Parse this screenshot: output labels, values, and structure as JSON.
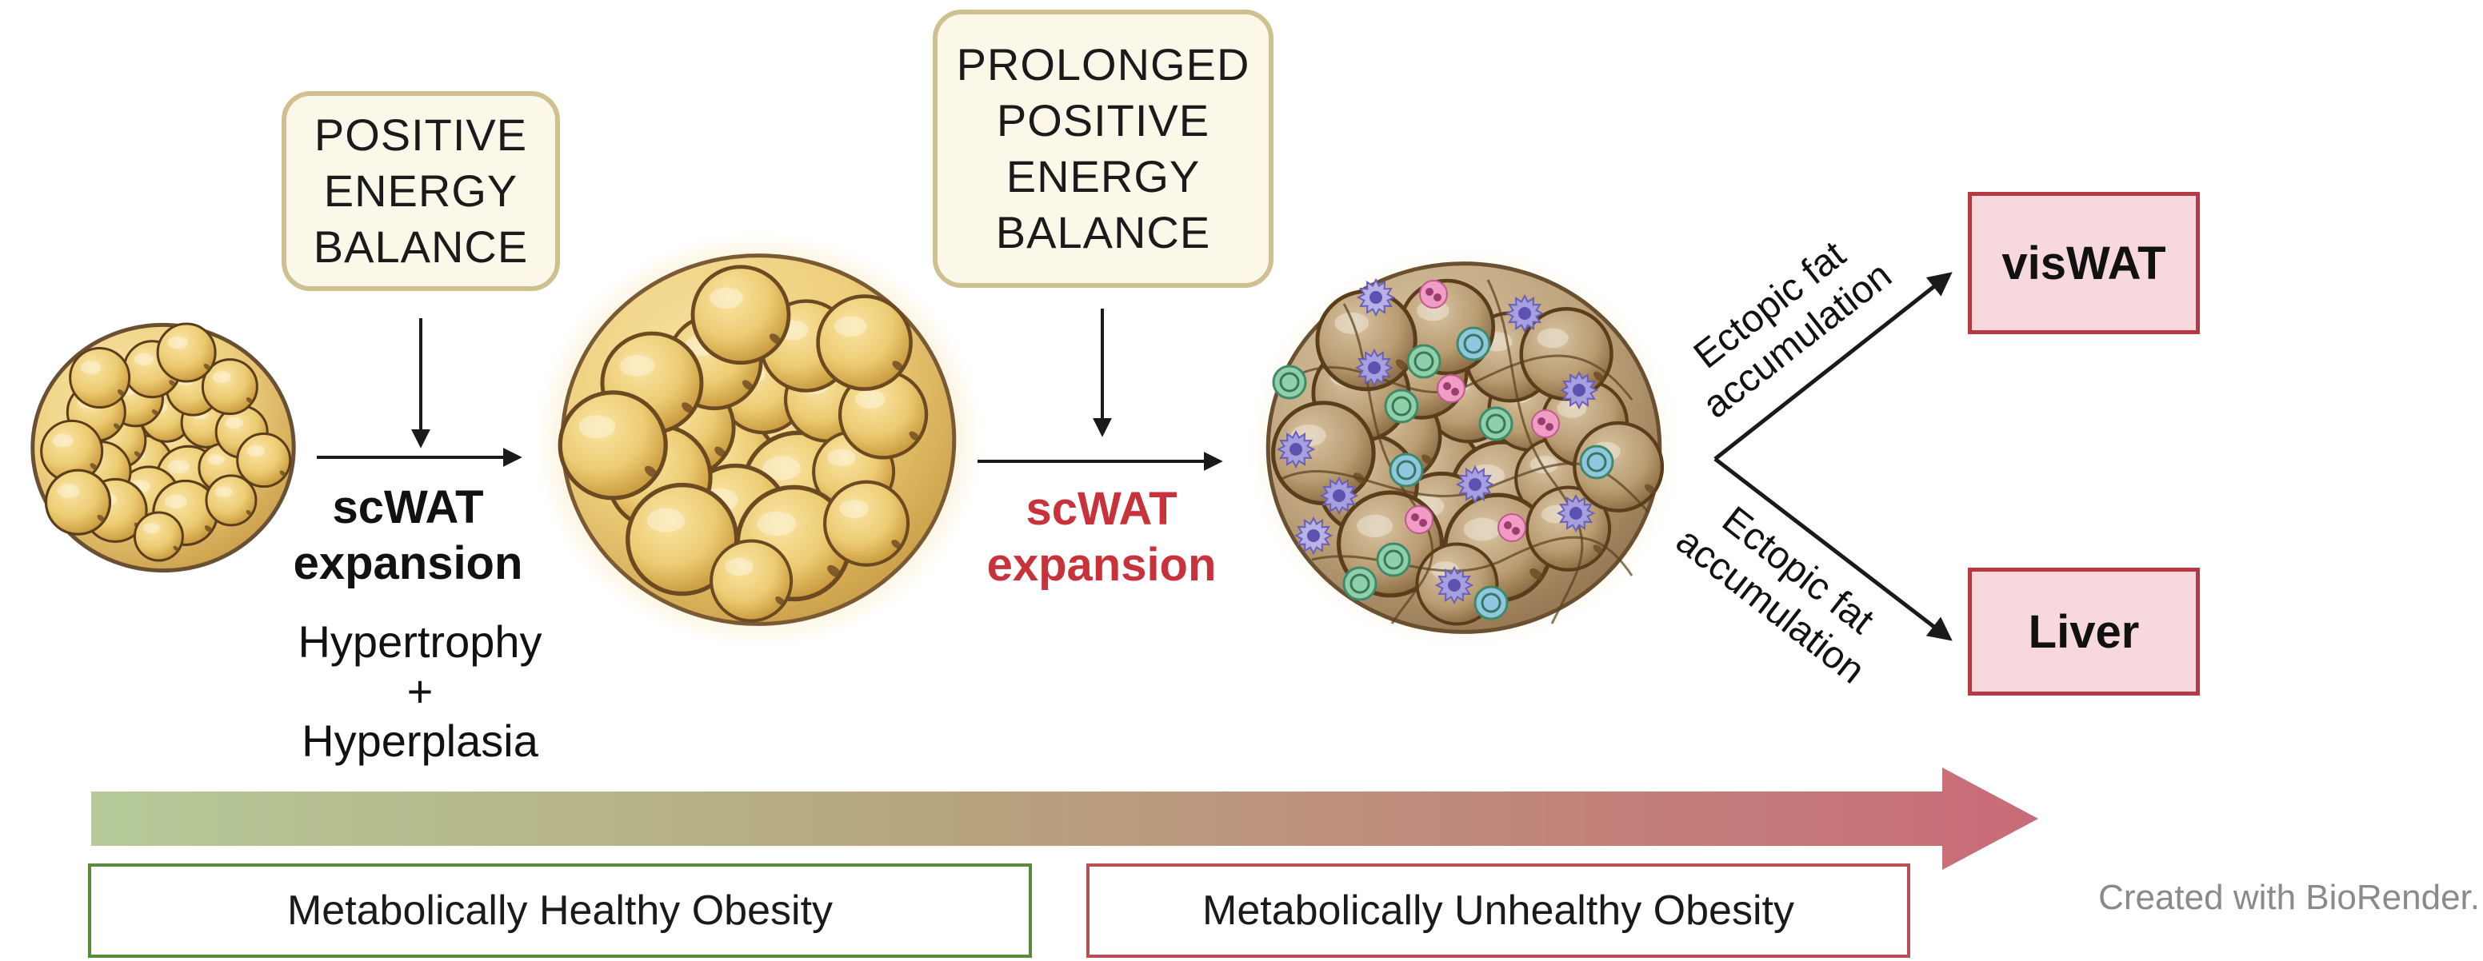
{
  "stimulus_1": [
    "POSITIVE",
    "ENERGY",
    "BALANCE"
  ],
  "stimulus_2": [
    "PROLONGED",
    "POSITIVE",
    "ENERGY",
    "BALANCE"
  ],
  "step_1": {
    "label_lines": [
      "scWAT",
      "expansion"
    ],
    "mechanism_lines": [
      "Hypertrophy",
      "+",
      "Hyperplasia"
    ]
  },
  "step_2": {
    "label_lines": [
      "scWAT",
      "expansion"
    ]
  },
  "branches": {
    "upper_label_lines": [
      "Ectopic fat",
      "accumulation"
    ],
    "lower_label_lines": [
      "Ectopic fat",
      "accumulation"
    ]
  },
  "targets": {
    "upper": "visWAT",
    "lower": "Liver"
  },
  "phases": {
    "healthy": "Metabolically Healthy Obesity",
    "unhealthy": "Metabolically Unhealthy Obesity"
  },
  "credit": "Created with BioRender.",
  "colors": {
    "text": "#111111",
    "accent_red": "#c8323a",
    "healthy_green": "#5a8a3c",
    "unhealthy_red": "#b8505a",
    "gradient_start": "#b5ca98",
    "gradient_end": "#c96a78",
    "stimulus_fill": "#fbf8ea",
    "stimulus_border": "#cfc08f",
    "organ_fill": "#f7d9dd"
  }
}
